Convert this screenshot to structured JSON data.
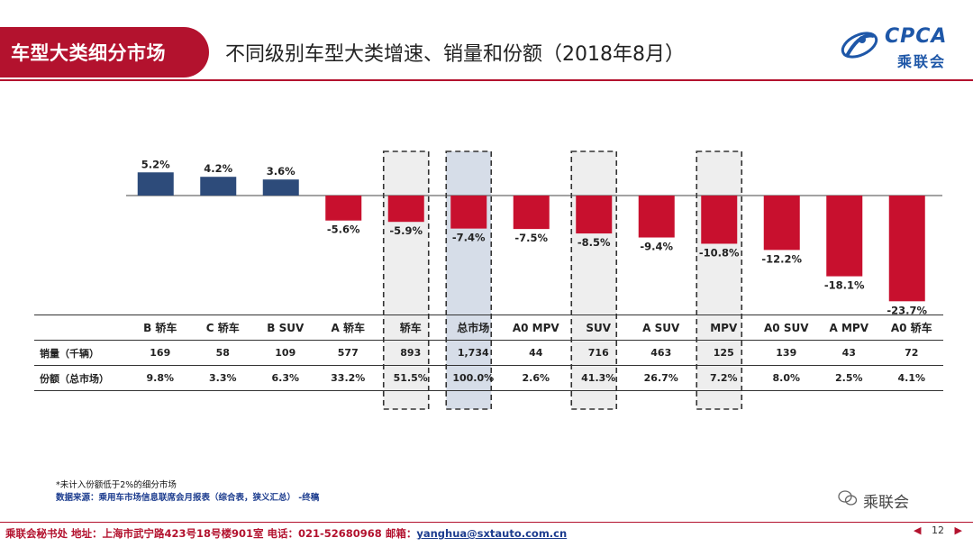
{
  "header": {
    "section_label": "车型大类细分市场",
    "title": "不同级别车型大类增速、销量和份额（2018年8月）"
  },
  "logo": {
    "name": "CPCA",
    "chinese": "乘联会"
  },
  "colors": {
    "brand_red": "#b3122e",
    "positive_bar": "#2d4b7a",
    "negative_bar": "#c8102e",
    "highlight_fill": "#eeeeee",
    "total_fill": "#d6dde8"
  },
  "chart_data": {
    "type": "bar",
    "categories": [
      "B 轿车",
      "C 轿车",
      "B SUV",
      "A 轿车",
      "轿车",
      "总市场",
      "A0 MPV",
      "SUV",
      "A SUV",
      "MPV",
      "A0 SUV",
      "A MPV",
      "A0 轿车"
    ],
    "values": [
      5.2,
      4.2,
      3.6,
      -5.6,
      -5.9,
      -7.4,
      -7.5,
      -8.5,
      -9.4,
      -10.8,
      -12.2,
      -18.1,
      -23.7
    ],
    "value_labels": [
      "5.2%",
      "4.2%",
      "3.6%",
      "-5.6%",
      "-5.9%",
      "-7.4%",
      "-7.5%",
      "-8.5%",
      "-9.4%",
      "-10.8%",
      "-12.2%",
      "-18.1%",
      "-23.7%"
    ],
    "unit": "%",
    "highlighted": [
      "轿车",
      "总市场",
      "SUV",
      "MPV"
    ],
    "ylim": [
      -25,
      7
    ]
  },
  "table": {
    "headers": [
      "B 轿车",
      "C 轿车",
      "B SUV",
      "A 轿车",
      "轿车",
      "总市场",
      "A0 MPV",
      "SUV",
      "A SUV",
      "MPV",
      "A0 SUV",
      "A MPV",
      "A0 轿车"
    ],
    "rows": [
      {
        "label": "销量（千辆）",
        "values": [
          "169",
          "58",
          "109",
          "577",
          "893",
          "1,734",
          "44",
          "716",
          "463",
          "125",
          "139",
          "43",
          "72"
        ]
      },
      {
        "label": "份额（总市场）",
        "values": [
          "9.8%",
          "3.3%",
          "6.3%",
          "33.2%",
          "51.5%",
          "100.0%",
          "2.6%",
          "41.3%",
          "26.7%",
          "7.2%",
          "8.0%",
          "2.5%",
          "4.1%"
        ]
      }
    ]
  },
  "notes": {
    "line1": "*未计入份额低于2%的细分市场",
    "line2": "数据来源：乘用车市场信息联席会月报表（综合表，狭义汇总）  -终稿"
  },
  "wechat": {
    "name": "乘联会"
  },
  "footer": {
    "text": "乘联会秘书处   地址：上海市武宁路423号18号楼901室  电话：021-52680968   邮箱：",
    "email": "yanghua@sxtauto.com.cn",
    "page": "12"
  }
}
